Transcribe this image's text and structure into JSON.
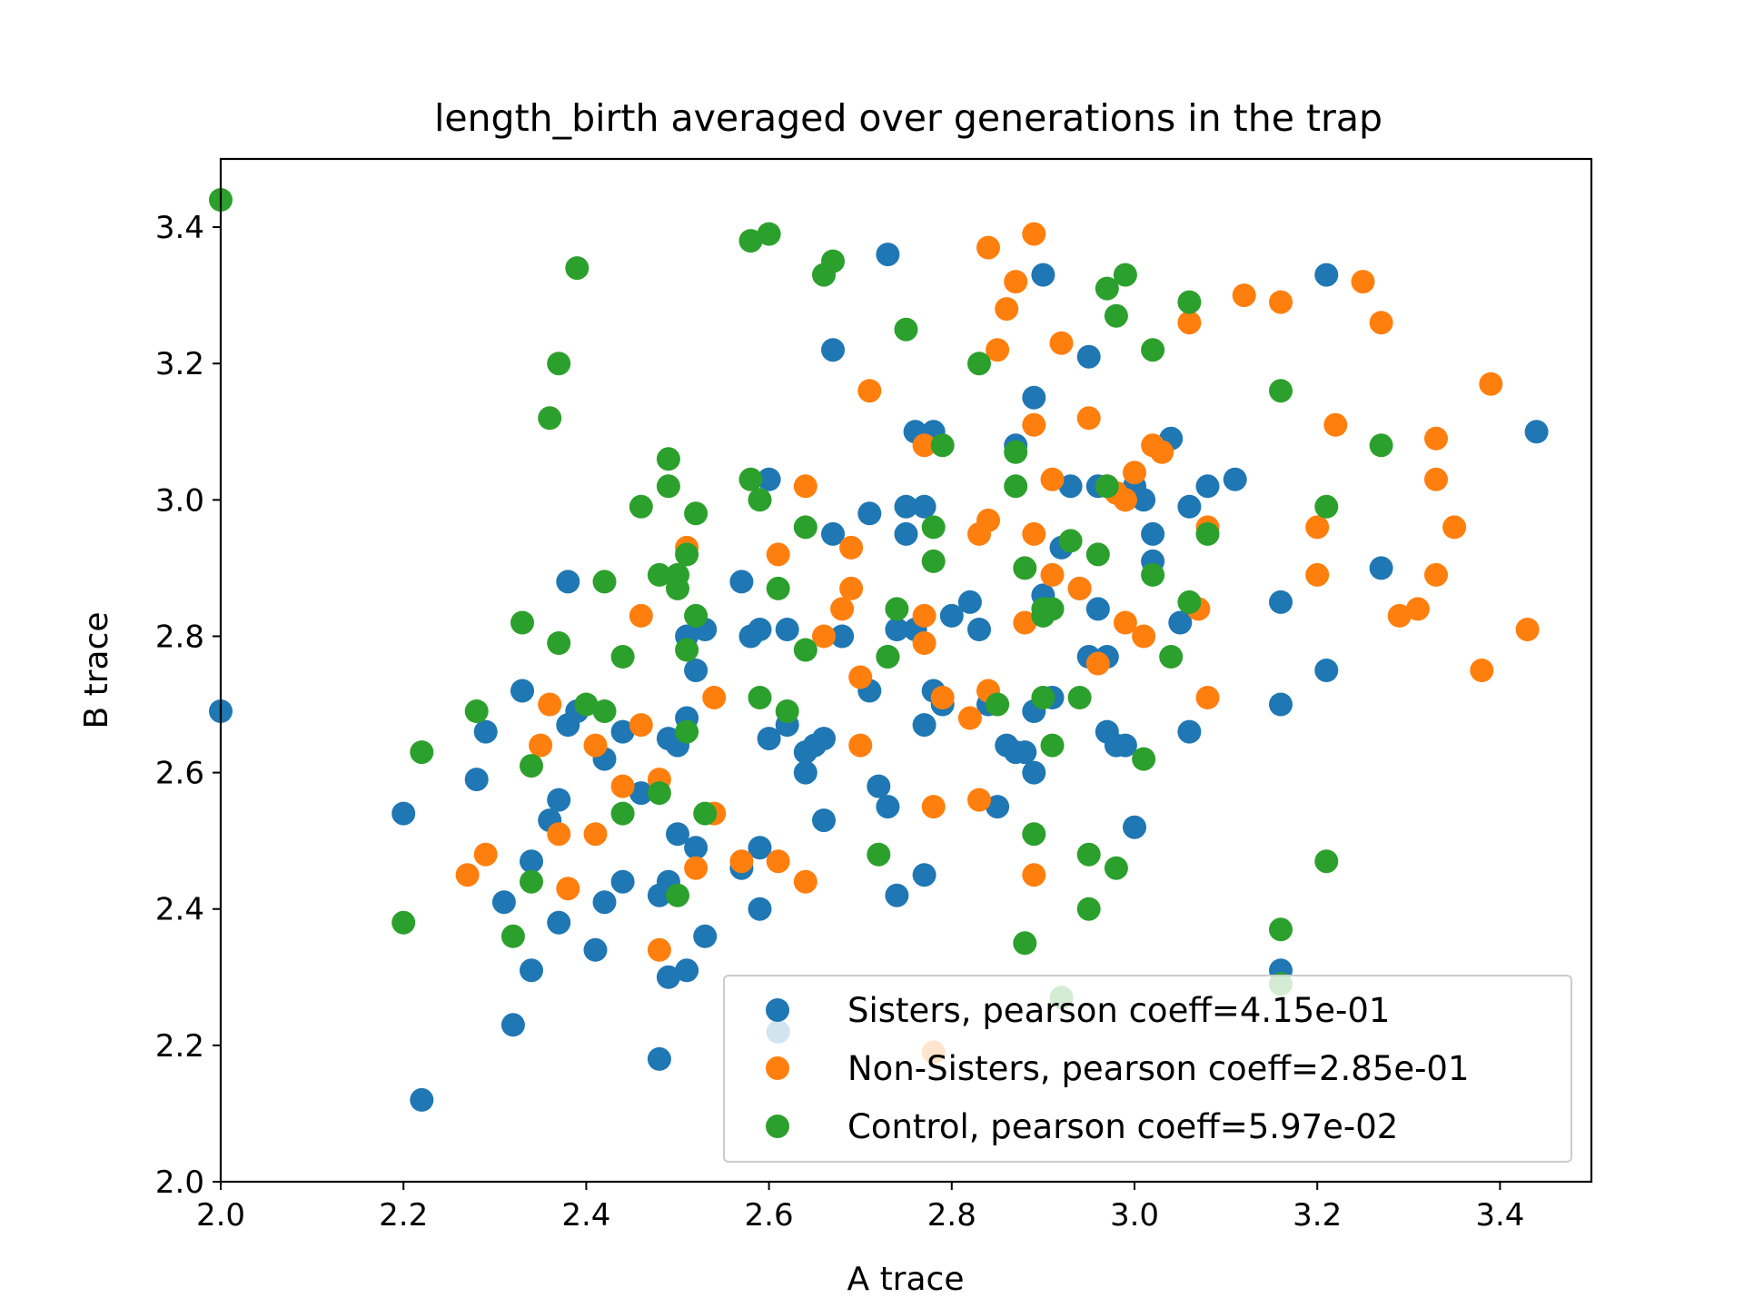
{
  "chart_data": {
    "type": "scatter",
    "title": "length_birth averaged over generations in the trap",
    "xlabel": "A trace",
    "ylabel": "B trace",
    "xlim": [
      2.0,
      3.5
    ],
    "ylim": [
      2.0,
      3.5
    ],
    "xticks": [
      "2.0",
      "2.2",
      "2.4",
      "2.6",
      "2.8",
      "3.0",
      "3.2",
      "3.4"
    ],
    "yticks": [
      "2.0",
      "2.2",
      "2.4",
      "2.6",
      "2.8",
      "3.0",
      "3.2",
      "3.4"
    ],
    "grid": false,
    "legend_position": "lower-right",
    "series": [
      {
        "name": "Sisters, pearson coeff=4.15e-01",
        "color": "#1f77b4",
        "points": [
          [
            2.0,
            2.69
          ],
          [
            2.2,
            2.54
          ],
          [
            2.22,
            2.12
          ],
          [
            2.28,
            2.59
          ],
          [
            2.29,
            2.66
          ],
          [
            2.31,
            2.41
          ],
          [
            2.32,
            2.23
          ],
          [
            2.33,
            2.72
          ],
          [
            2.34,
            2.47
          ],
          [
            2.34,
            2.31
          ],
          [
            2.36,
            2.53
          ],
          [
            2.37,
            2.56
          ],
          [
            2.37,
            2.38
          ],
          [
            2.38,
            2.88
          ],
          [
            2.38,
            2.67
          ],
          [
            2.39,
            2.69
          ],
          [
            2.41,
            2.34
          ],
          [
            2.42,
            2.62
          ],
          [
            2.42,
            2.41
          ],
          [
            2.44,
            2.66
          ],
          [
            2.44,
            2.44
          ],
          [
            2.46,
            2.57
          ],
          [
            2.48,
            2.42
          ],
          [
            2.48,
            2.18
          ],
          [
            2.49,
            2.65
          ],
          [
            2.49,
            2.3
          ],
          [
            2.49,
            2.44
          ],
          [
            2.5,
            2.64
          ],
          [
            2.5,
            2.51
          ],
          [
            2.51,
            2.8
          ],
          [
            2.51,
            2.68
          ],
          [
            2.51,
            2.31
          ],
          [
            2.52,
            2.49
          ],
          [
            2.52,
            2.75
          ],
          [
            2.53,
            2.81
          ],
          [
            2.53,
            2.36
          ],
          [
            2.57,
            2.88
          ],
          [
            2.57,
            2.46
          ],
          [
            2.58,
            2.8
          ],
          [
            2.59,
            2.81
          ],
          [
            2.59,
            2.49
          ],
          [
            2.59,
            2.4
          ],
          [
            2.6,
            3.03
          ],
          [
            2.6,
            2.65
          ],
          [
            2.61,
            2.22
          ],
          [
            2.62,
            2.81
          ],
          [
            2.62,
            2.67
          ],
          [
            2.64,
            2.6
          ],
          [
            2.64,
            2.63
          ],
          [
            2.65,
            2.64
          ],
          [
            2.66,
            2.65
          ],
          [
            2.66,
            2.53
          ],
          [
            2.67,
            3.22
          ],
          [
            2.67,
            2.95
          ],
          [
            2.68,
            2.8
          ],
          [
            2.71,
            2.72
          ],
          [
            2.71,
            2.98
          ],
          [
            2.72,
            2.58
          ],
          [
            2.73,
            2.77
          ],
          [
            2.73,
            2.55
          ],
          [
            2.73,
            3.36
          ],
          [
            2.74,
            2.81
          ],
          [
            2.74,
            2.42
          ],
          [
            2.75,
            2.99
          ],
          [
            2.75,
            2.95
          ],
          [
            2.76,
            3.1
          ],
          [
            2.76,
            2.81
          ],
          [
            2.77,
            2.99
          ],
          [
            2.77,
            2.45
          ],
          [
            2.77,
            2.67
          ],
          [
            2.78,
            2.72
          ],
          [
            2.78,
            3.1
          ],
          [
            2.79,
            2.7
          ],
          [
            2.8,
            2.83
          ],
          [
            2.82,
            2.85
          ],
          [
            2.83,
            2.81
          ],
          [
            2.84,
            2.7
          ],
          [
            2.85,
            2.55
          ],
          [
            2.86,
            2.64
          ],
          [
            2.87,
            2.63
          ],
          [
            2.87,
            3.08
          ],
          [
            2.88,
            2.63
          ],
          [
            2.89,
            2.6
          ],
          [
            2.89,
            2.69
          ],
          [
            2.89,
            3.15
          ],
          [
            2.9,
            3.33
          ],
          [
            2.9,
            2.86
          ],
          [
            2.91,
            2.71
          ],
          [
            2.92,
            2.93
          ],
          [
            2.93,
            3.02
          ],
          [
            2.94,
            2.87
          ],
          [
            2.95,
            3.21
          ],
          [
            2.95,
            2.77
          ],
          [
            2.96,
            2.84
          ],
          [
            2.96,
            3.02
          ],
          [
            2.97,
            2.77
          ],
          [
            2.97,
            2.66
          ],
          [
            2.98,
            2.64
          ],
          [
            2.99,
            2.64
          ],
          [
            2.99,
            3.0
          ],
          [
            3.0,
            2.52
          ],
          [
            3.0,
            3.02
          ],
          [
            3.01,
            3.0
          ],
          [
            3.02,
            2.95
          ],
          [
            3.02,
            2.91
          ],
          [
            3.04,
            3.09
          ],
          [
            3.05,
            2.82
          ],
          [
            3.06,
            2.66
          ],
          [
            3.06,
            2.99
          ],
          [
            3.08,
            3.02
          ],
          [
            3.11,
            3.03
          ],
          [
            3.16,
            2.85
          ],
          [
            3.16,
            2.7
          ],
          [
            3.16,
            2.31
          ],
          [
            3.21,
            3.33
          ],
          [
            3.21,
            2.75
          ],
          [
            3.27,
            2.9
          ],
          [
            3.44,
            3.1
          ]
        ]
      },
      {
        "name": "Non-Sisters, pearson coeff=2.85e-01",
        "color": "#ff7f0e",
        "points": [
          [
            2.27,
            2.45
          ],
          [
            2.29,
            2.48
          ],
          [
            2.35,
            2.64
          ],
          [
            2.36,
            2.7
          ],
          [
            2.37,
            2.51
          ],
          [
            2.38,
            2.43
          ],
          [
            2.41,
            2.64
          ],
          [
            2.41,
            2.51
          ],
          [
            2.44,
            2.58
          ],
          [
            2.46,
            2.67
          ],
          [
            2.46,
            2.83
          ],
          [
            2.48,
            2.34
          ],
          [
            2.48,
            2.59
          ],
          [
            2.51,
            2.93
          ],
          [
            2.52,
            2.46
          ],
          [
            2.54,
            2.71
          ],
          [
            2.54,
            2.54
          ],
          [
            2.57,
            2.47
          ],
          [
            2.61,
            2.92
          ],
          [
            2.61,
            2.47
          ],
          [
            2.64,
            2.44
          ],
          [
            2.64,
            3.02
          ],
          [
            2.66,
            2.8
          ],
          [
            2.68,
            2.84
          ],
          [
            2.69,
            2.93
          ],
          [
            2.69,
            2.87
          ],
          [
            2.7,
            2.74
          ],
          [
            2.7,
            2.64
          ],
          [
            2.71,
            3.16
          ],
          [
            2.77,
            2.79
          ],
          [
            2.77,
            2.83
          ],
          [
            2.77,
            3.08
          ],
          [
            2.78,
            2.55
          ],
          [
            2.78,
            2.19
          ],
          [
            2.79,
            2.71
          ],
          [
            2.82,
            2.68
          ],
          [
            2.83,
            2.95
          ],
          [
            2.83,
            2.56
          ],
          [
            2.84,
            2.97
          ],
          [
            2.84,
            2.72
          ],
          [
            2.84,
            3.37
          ],
          [
            2.85,
            3.22
          ],
          [
            2.86,
            3.28
          ],
          [
            2.87,
            3.32
          ],
          [
            2.88,
            2.82
          ],
          [
            2.89,
            3.39
          ],
          [
            2.89,
            2.95
          ],
          [
            2.89,
            2.45
          ],
          [
            2.89,
            3.11
          ],
          [
            2.91,
            3.03
          ],
          [
            2.91,
            2.89
          ],
          [
            2.92,
            3.23
          ],
          [
            2.94,
            2.87
          ],
          [
            2.95,
            3.12
          ],
          [
            2.96,
            2.76
          ],
          [
            2.97,
            3.02
          ],
          [
            2.98,
            3.01
          ],
          [
            2.99,
            2.82
          ],
          [
            2.99,
            3.0
          ],
          [
            3.0,
            3.04
          ],
          [
            3.01,
            2.8
          ],
          [
            3.02,
            3.08
          ],
          [
            3.03,
            3.07
          ],
          [
            3.06,
            3.26
          ],
          [
            3.07,
            2.84
          ],
          [
            3.08,
            2.96
          ],
          [
            3.08,
            2.71
          ],
          [
            3.12,
            3.3
          ],
          [
            3.16,
            3.29
          ],
          [
            3.2,
            2.96
          ],
          [
            3.2,
            2.89
          ],
          [
            3.22,
            3.11
          ],
          [
            3.25,
            3.32
          ],
          [
            3.27,
            3.26
          ],
          [
            3.29,
            2.83
          ],
          [
            3.31,
            2.84
          ],
          [
            3.33,
            2.89
          ],
          [
            3.33,
            3.09
          ],
          [
            3.33,
            3.03
          ],
          [
            3.35,
            2.96
          ],
          [
            3.38,
            2.75
          ],
          [
            3.39,
            3.17
          ],
          [
            3.43,
            2.81
          ]
        ]
      },
      {
        "name": "Control, pearson coeff=5.97e-02",
        "color": "#2ca02c",
        "points": [
          [
            2.0,
            3.44
          ],
          [
            2.2,
            2.38
          ],
          [
            2.22,
            2.63
          ],
          [
            2.28,
            2.69
          ],
          [
            2.32,
            2.36
          ],
          [
            2.33,
            2.82
          ],
          [
            2.34,
            2.44
          ],
          [
            2.34,
            2.61
          ],
          [
            2.36,
            3.12
          ],
          [
            2.37,
            2.79
          ],
          [
            2.37,
            3.2
          ],
          [
            2.39,
            3.34
          ],
          [
            2.4,
            2.7
          ],
          [
            2.42,
            2.88
          ],
          [
            2.42,
            2.69
          ],
          [
            2.44,
            2.77
          ],
          [
            2.44,
            2.54
          ],
          [
            2.46,
            2.99
          ],
          [
            2.48,
            2.89
          ],
          [
            2.48,
            2.57
          ],
          [
            2.49,
            3.06
          ],
          [
            2.49,
            3.02
          ],
          [
            2.5,
            2.87
          ],
          [
            2.5,
            2.42
          ],
          [
            2.5,
            2.89
          ],
          [
            2.51,
            2.78
          ],
          [
            2.51,
            2.66
          ],
          [
            2.51,
            2.92
          ],
          [
            2.52,
            2.83
          ],
          [
            2.52,
            2.98
          ],
          [
            2.53,
            2.54
          ],
          [
            2.58,
            3.38
          ],
          [
            2.58,
            3.03
          ],
          [
            2.59,
            3.0
          ],
          [
            2.59,
            2.71
          ],
          [
            2.6,
            3.39
          ],
          [
            2.61,
            2.87
          ],
          [
            2.62,
            2.69
          ],
          [
            2.64,
            2.96
          ],
          [
            2.64,
            2.78
          ],
          [
            2.66,
            3.33
          ],
          [
            2.67,
            3.35
          ],
          [
            2.72,
            2.48
          ],
          [
            2.73,
            2.77
          ],
          [
            2.74,
            2.84
          ],
          [
            2.75,
            3.25
          ],
          [
            2.78,
            2.96
          ],
          [
            2.78,
            2.91
          ],
          [
            2.79,
            3.08
          ],
          [
            2.83,
            3.2
          ],
          [
            2.85,
            2.7
          ],
          [
            2.87,
            3.07
          ],
          [
            2.87,
            3.02
          ],
          [
            2.88,
            2.9
          ],
          [
            2.88,
            2.35
          ],
          [
            2.89,
            2.51
          ],
          [
            2.9,
            2.84
          ],
          [
            2.9,
            2.83
          ],
          [
            2.9,
            2.71
          ],
          [
            2.91,
            2.64
          ],
          [
            2.91,
            2.84
          ],
          [
            2.92,
            2.27
          ],
          [
            2.93,
            2.94
          ],
          [
            2.94,
            2.71
          ],
          [
            2.95,
            2.4
          ],
          [
            2.95,
            2.48
          ],
          [
            2.96,
            2.92
          ],
          [
            2.97,
            3.02
          ],
          [
            2.97,
            3.31
          ],
          [
            2.98,
            2.46
          ],
          [
            2.98,
            3.27
          ],
          [
            2.99,
            3.33
          ],
          [
            3.01,
            2.62
          ],
          [
            3.02,
            3.22
          ],
          [
            3.02,
            2.89
          ],
          [
            3.04,
            2.77
          ],
          [
            3.06,
            2.85
          ],
          [
            3.06,
            3.29
          ],
          [
            3.08,
            2.95
          ],
          [
            3.16,
            3.16
          ],
          [
            3.16,
            2.37
          ],
          [
            3.16,
            2.29
          ],
          [
            3.21,
            2.99
          ],
          [
            3.21,
            2.47
          ],
          [
            3.27,
            3.08
          ]
        ]
      }
    ]
  }
}
